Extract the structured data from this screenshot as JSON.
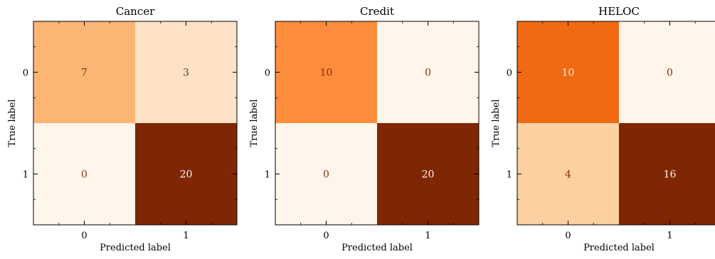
{
  "chart_data": [
    {
      "type": "heatmap",
      "title": "Cancer",
      "xlabel": "Predicted label",
      "ylabel": "True label",
      "x_categories": [
        "0",
        "1"
      ],
      "y_categories": [
        "0",
        "1"
      ],
      "values": [
        [
          7,
          3
        ],
        [
          0,
          20
        ]
      ],
      "colormap": "Oranges"
    },
    {
      "type": "heatmap",
      "title": "Credit",
      "xlabel": "Predicted label",
      "ylabel": "True label",
      "x_categories": [
        "0",
        "1"
      ],
      "y_categories": [
        "0",
        "1"
      ],
      "values": [
        [
          10,
          0
        ],
        [
          0,
          20
        ]
      ],
      "colormap": "Oranges"
    },
    {
      "type": "heatmap",
      "title": "HELOC",
      "xlabel": "Predicted label",
      "ylabel": "True label",
      "x_categories": [
        "0",
        "1"
      ],
      "y_categories": [
        "0",
        "1"
      ],
      "values": [
        [
          10,
          0
        ],
        [
          4,
          16
        ]
      ],
      "colormap": "Oranges"
    }
  ],
  "colors": {
    "low_text": "#8b2d0c",
    "high_text": "#fff5eb",
    "frame": "#000000"
  }
}
